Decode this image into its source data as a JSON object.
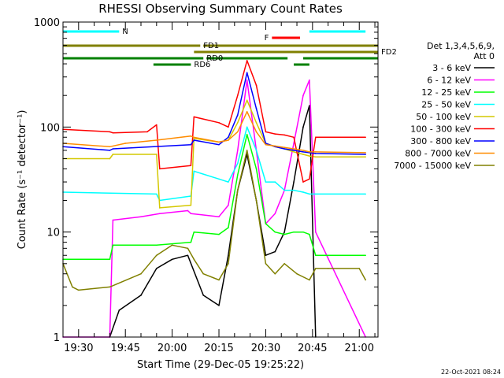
{
  "chart_data": {
    "type": "line",
    "title": "RHESSI Observing Summary Count Rates",
    "xlabel": "Start Time (29-Dec-05 19:25:22)",
    "ylabel": "Count Rate (s⁻¹ detector⁻¹)",
    "yscale": "log",
    "ylim": [
      1,
      1000
    ],
    "y_ticks": [
      1,
      10,
      100,
      1000
    ],
    "y_tick_labels": [
      "1",
      "10",
      "100",
      "1000"
    ],
    "xlim": [
      "19:25",
      "21:06"
    ],
    "x_ticks": [
      "19:30",
      "19:45",
      "20:00",
      "20:15",
      "20:30",
      "20:45",
      "21:00"
    ],
    "legend": {
      "header": [
        "Det 1,3,4,5,6,9,",
        "Att 0"
      ],
      "placement": "right",
      "entries": [
        {
          "label": "3 - 6 keV",
          "color": "#000000"
        },
        {
          "label": "6 - 12 keV",
          "color": "#ff00ff"
        },
        {
          "label": "12 - 25 keV",
          "color": "#00ff00"
        },
        {
          "label": "25 - 50 keV",
          "color": "#00ffff"
        },
        {
          "label": "50 - 100 keV",
          "color": "#d4c800"
        },
        {
          "label": "100 - 300 keV",
          "color": "#ff0000"
        },
        {
          "label": "300 - 800 keV",
          "color": "#0000ff"
        },
        {
          "label": "800 - 7000 keV",
          "color": "#ff8c00"
        },
        {
          "label": "7000 - 15000 keV",
          "color": "#808000"
        }
      ]
    },
    "state_bars": [
      {
        "label": "N",
        "color": "#00ffff",
        "segments": [
          [
            "19:25",
            "19:43"
          ],
          [
            "20:44",
            "21:02"
          ]
        ]
      },
      {
        "label": "F",
        "color": "#ff0000",
        "segments": [
          [
            "20:32",
            "20:41"
          ]
        ]
      },
      {
        "label": "FD1",
        "color": "#808000",
        "segments": [
          [
            "19:25",
            "20:09"
          ],
          [
            "20:10",
            "21:06"
          ]
        ]
      },
      {
        "label": "FD2",
        "color": "#808000",
        "segments": [
          [
            "20:07",
            "21:06"
          ]
        ]
      },
      {
        "label": "RD0",
        "color": "#008000",
        "segments": [
          [
            "19:25",
            "20:10"
          ],
          [
            "20:11",
            "20:37"
          ],
          [
            "20:42",
            "21:06"
          ]
        ]
      },
      {
        "label": "RD6",
        "color": "#008000",
        "segments": [
          [
            "19:54",
            "20:06"
          ],
          [
            "20:39",
            "20:44"
          ]
        ]
      }
    ],
    "series": [
      {
        "name": "3 - 6 keV",
        "color": "#000000",
        "x": [
          "19:40",
          "19:43",
          "19:50",
          "19:55",
          "20:00",
          "20:05",
          "20:10",
          "20:15",
          "20:18",
          "20:21",
          "20:24",
          "20:27",
          "20:30",
          "20:33",
          "20:36",
          "20:39",
          "20:42",
          "20:44",
          "20:46"
        ],
        "values": [
          1.0,
          1.8,
          2.5,
          4.5,
          5.5,
          6.0,
          2.5,
          2.0,
          6.0,
          25,
          55,
          20,
          6.0,
          6.5,
          10,
          30,
          100,
          160,
          1.0
        ]
      },
      {
        "name": "6 - 12 keV",
        "color": "#ff00ff",
        "x": [
          "19:25",
          "19:40",
          "19:41",
          "19:50",
          "19:56",
          "20:05",
          "20:06",
          "20:15",
          "20:18",
          "20:21",
          "20:24",
          "20:27",
          "20:30",
          "20:33",
          "20:36",
          "20:39",
          "20:42",
          "20:44",
          "20:46",
          "21:02"
        ],
        "values": [
          1.0,
          1.0,
          13,
          14,
          15,
          16,
          15,
          14,
          18,
          60,
          280,
          60,
          12,
          15,
          25,
          70,
          200,
          280,
          10,
          1.0
        ]
      },
      {
        "name": "12 - 25 keV",
        "color": "#00ff00",
        "x": [
          "19:25",
          "19:40",
          "19:41",
          "19:55",
          "20:06",
          "20:07",
          "20:15",
          "20:18",
          "20:21",
          "20:24",
          "20:27",
          "20:30",
          "20:33",
          "20:36",
          "20:39",
          "20:42",
          "20:44",
          "20:46",
          "21:02"
        ],
        "values": [
          5.5,
          5.5,
          7.5,
          7.5,
          8,
          10,
          9.5,
          11,
          35,
          85,
          40,
          12,
          10,
          9.5,
          10,
          10,
          9.5,
          6,
          6
        ]
      },
      {
        "name": "25 - 50 keV",
        "color": "#00ffff",
        "x": [
          "19:25",
          "19:55",
          "19:56",
          "20:06",
          "20:07",
          "20:15",
          "20:18",
          "20:21",
          "20:24",
          "20:27",
          "20:30",
          "20:33",
          "20:36",
          "20:39",
          "20:42",
          "20:44",
          "20:46",
          "21:02"
        ],
        "values": [
          24,
          23,
          20,
          22,
          38,
          32,
          30,
          45,
          100,
          60,
          30,
          30,
          25,
          25,
          24,
          23,
          23,
          23
        ]
      },
      {
        "name": "50 - 100 keV",
        "color": "#d4c800",
        "x": [
          "19:25",
          "19:40",
          "19:41",
          "19:55",
          "19:56",
          "20:06",
          "20:07",
          "20:15",
          "20:18",
          "20:21",
          "20:24",
          "20:27",
          "20:30",
          "20:33",
          "20:36",
          "20:39",
          "20:42",
          "20:44",
          "20:46",
          "21:02"
        ],
        "values": [
          50,
          50,
          55,
          55,
          17,
          18,
          78,
          72,
          75,
          110,
          180,
          110,
          70,
          65,
          62,
          58,
          55,
          53,
          52,
          52
        ]
      },
      {
        "name": "100 - 300 keV",
        "color": "#ff0000",
        "x": [
          "19:25",
          "19:40",
          "19:41",
          "19:52",
          "19:55",
          "19:56",
          "20:06",
          "20:07",
          "20:15",
          "20:18",
          "20:21",
          "20:24",
          "20:27",
          "20:30",
          "20:33",
          "20:36",
          "20:39",
          "20:42",
          "20:44",
          "20:46",
          "21:02"
        ],
        "values": [
          95,
          90,
          88,
          90,
          105,
          40,
          43,
          125,
          110,
          100,
          200,
          430,
          250,
          90,
          86,
          84,
          80,
          30,
          32,
          80,
          80
        ]
      },
      {
        "name": "300 - 800 keV",
        "color": "#0000ff",
        "x": [
          "19:25",
          "19:40",
          "19:41",
          "20:06",
          "20:07",
          "20:15",
          "20:18",
          "20:21",
          "20:24",
          "20:27",
          "20:30",
          "20:33",
          "20:36",
          "20:39",
          "20:42",
          "20:44",
          "20:46",
          "21:02"
        ],
        "values": [
          65,
          60,
          62,
          68,
          75,
          68,
          80,
          130,
          330,
          150,
          70,
          65,
          62,
          60,
          58,
          57,
          56,
          55
        ]
      },
      {
        "name": "800 - 7000 keV",
        "color": "#ff8c00",
        "x": [
          "19:25",
          "19:40",
          "19:45",
          "19:55",
          "20:06",
          "20:07",
          "20:15",
          "20:18",
          "20:21",
          "20:24",
          "20:27",
          "20:30",
          "20:33",
          "20:36",
          "20:39",
          "20:42",
          "20:44",
          "20:46",
          "21:02"
        ],
        "values": [
          70,
          65,
          70,
          75,
          82,
          80,
          72,
          75,
          90,
          140,
          90,
          68,
          66,
          64,
          62,
          60,
          58,
          58,
          57
        ]
      },
      {
        "name": "7000 - 15000 keV",
        "color": "#808000",
        "x": [
          "19:25",
          "19:28",
          "19:30",
          "19:40",
          "19:50",
          "19:55",
          "20:00",
          "20:05",
          "20:07",
          "20:10",
          "20:15",
          "20:18",
          "20:21",
          "20:24",
          "20:27",
          "20:30",
          "20:33",
          "20:36",
          "20:40",
          "20:44",
          "20:46",
          "20:50",
          "21:00",
          "21:02"
        ],
        "values": [
          5.0,
          3.0,
          2.8,
          3.0,
          4.0,
          6.0,
          7.5,
          7.0,
          5.5,
          4.0,
          3.5,
          5.0,
          25,
          60,
          20,
          5.0,
          4.0,
          5.0,
          4.0,
          3.5,
          4.5,
          4.5,
          4.5,
          3.5
        ]
      }
    ],
    "grid": false
  },
  "footer": {
    "stamp": "22-Oct-2021 08:24"
  }
}
